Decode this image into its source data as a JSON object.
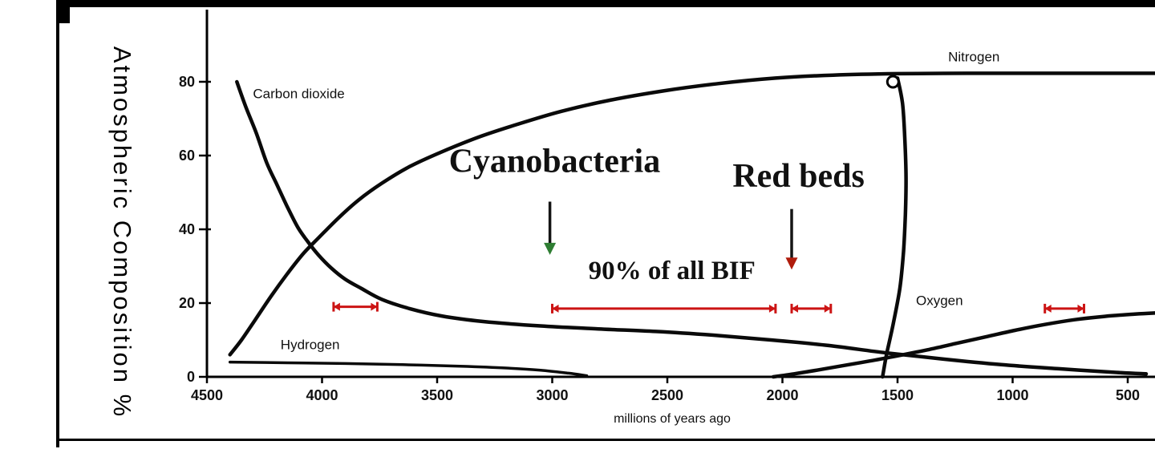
{
  "figure": {
    "background": "#ffffff",
    "frame_color": "#000000"
  },
  "chart_data": {
    "type": "line",
    "title": "",
    "ylabel": "Atmospheric Composition %",
    "xlabel": "millions of years ago",
    "x_axis_reversed": true,
    "xlim": [
      4500,
      380
    ],
    "ylim": [
      0,
      100
    ],
    "x_ticks": [
      4500,
      4000,
      3500,
      3000,
      2500,
      2000,
      1500,
      1000,
      500
    ],
    "y_ticks": [
      0,
      20,
      40,
      60,
      80
    ],
    "grid": false,
    "curve_color": "#0a0a0a",
    "series": [
      {
        "name": "Carbon dioxide",
        "label_x": 4300,
        "label_y": 75.5,
        "label_anchor": "start",
        "points": [
          [
            4370,
            80
          ],
          [
            4330,
            73
          ],
          [
            4285,
            66
          ],
          [
            4240,
            58
          ],
          [
            4195,
            52
          ],
          [
            4150,
            46
          ],
          [
            4105,
            40.5
          ],
          [
            4060,
            36.5
          ],
          [
            4015,
            33
          ],
          [
            3960,
            29.5
          ],
          [
            3900,
            26.5
          ],
          [
            3830,
            24
          ],
          [
            3740,
            21
          ],
          [
            3620,
            18.5
          ],
          [
            3480,
            16.5
          ],
          [
            3300,
            15
          ],
          [
            3050,
            13.8
          ],
          [
            2800,
            13
          ],
          [
            2550,
            12.3
          ],
          [
            2300,
            11.3
          ],
          [
            2050,
            10
          ],
          [
            1800,
            8.5
          ],
          [
            1550,
            6.5
          ],
          [
            1300,
            4.8
          ],
          [
            1050,
            3.3
          ],
          [
            800,
            2.2
          ],
          [
            550,
            1.2
          ],
          [
            420,
            0.8
          ]
        ]
      },
      {
        "name": "Nitrogen",
        "label_x": 1280,
        "label_y": 85.5,
        "label_anchor": "start",
        "points": [
          [
            4400,
            6
          ],
          [
            4350,
            10
          ],
          [
            4290,
            15.5
          ],
          [
            4220,
            22
          ],
          [
            4150,
            28
          ],
          [
            4080,
            33.5
          ],
          [
            4010,
            38
          ],
          [
            3930,
            43
          ],
          [
            3840,
            48
          ],
          [
            3740,
            52.5
          ],
          [
            3620,
            57
          ],
          [
            3480,
            61
          ],
          [
            3320,
            65
          ],
          [
            3150,
            68.5
          ],
          [
            2960,
            72
          ],
          [
            2750,
            75
          ],
          [
            2520,
            77.5
          ],
          [
            2280,
            79.5
          ],
          [
            2030,
            81
          ],
          [
            1780,
            81.8
          ],
          [
            1500,
            82.2
          ],
          [
            1200,
            82.3
          ],
          [
            900,
            82.3
          ],
          [
            600,
            82.3
          ],
          [
            380,
            82.3
          ]
        ]
      },
      {
        "name": "Hydrogen",
        "label_x": 4180,
        "label_y": 7.5,
        "label_anchor": "start",
        "points": [
          [
            4400,
            4
          ],
          [
            4150,
            3.8
          ],
          [
            3900,
            3.6
          ],
          [
            3650,
            3.3
          ],
          [
            3400,
            2.9
          ],
          [
            3200,
            2.4
          ],
          [
            3050,
            1.8
          ],
          [
            2930,
            1
          ],
          [
            2850,
            0.3
          ]
        ]
      },
      {
        "name": "Oxygen",
        "label_x": 1420,
        "label_y": 19.5,
        "label_anchor": "start",
        "points": [
          [
            2040,
            0
          ],
          [
            1950,
            0.8
          ],
          [
            1850,
            1.8
          ],
          [
            1740,
            3
          ],
          [
            1620,
            4.3
          ],
          [
            1500,
            5.7
          ],
          [
            1380,
            7.2
          ],
          [
            1250,
            9
          ],
          [
            1120,
            10.8
          ],
          [
            990,
            12.6
          ],
          [
            860,
            14.2
          ],
          [
            730,
            15.5
          ],
          [
            600,
            16.4
          ],
          [
            470,
            17
          ],
          [
            380,
            17.3
          ]
        ]
      },
      {
        "name": "",
        "points": [
          [
            1500,
            81
          ],
          [
            1478,
            74
          ],
          [
            1468,
            64
          ],
          [
            1463,
            54
          ],
          [
            1466,
            44
          ],
          [
            1474,
            34
          ],
          [
            1490,
            24
          ],
          [
            1520,
            14
          ],
          [
            1548,
            6
          ],
          [
            1565,
            0
          ]
        ]
      }
    ],
    "annotations": {
      "cyanobacteria": {
        "text": "Cyanobacteria",
        "x": 2990,
        "y": 55.5,
        "arrow": {
          "x": 3010,
          "y_from": 47.5,
          "y_to": 33.5,
          "head_color": "#2e7d32"
        }
      },
      "red_beds": {
        "text": "Red beds",
        "x": 1930,
        "y": 51.5,
        "arrow": {
          "x": 1960,
          "y_from": 45.5,
          "y_to": 29.5,
          "head_color": "#b01c0c"
        }
      },
      "bif_label": {
        "text": "90% of all BIF",
        "x": 2480,
        "y": 26.5
      },
      "bif_range_color": "#cc1414",
      "bif_ranges": [
        {
          "from": 3950,
          "to": 3760,
          "y": 19
        },
        {
          "from": 3000,
          "to": 2030,
          "y": 18.5
        },
        {
          "from": 1960,
          "to": 1790,
          "y": 18.5
        },
        {
          "from": 860,
          "to": 690,
          "y": 18.5
        }
      ],
      "loop_marker": {
        "x": 1520,
        "y": 80
      }
    }
  }
}
